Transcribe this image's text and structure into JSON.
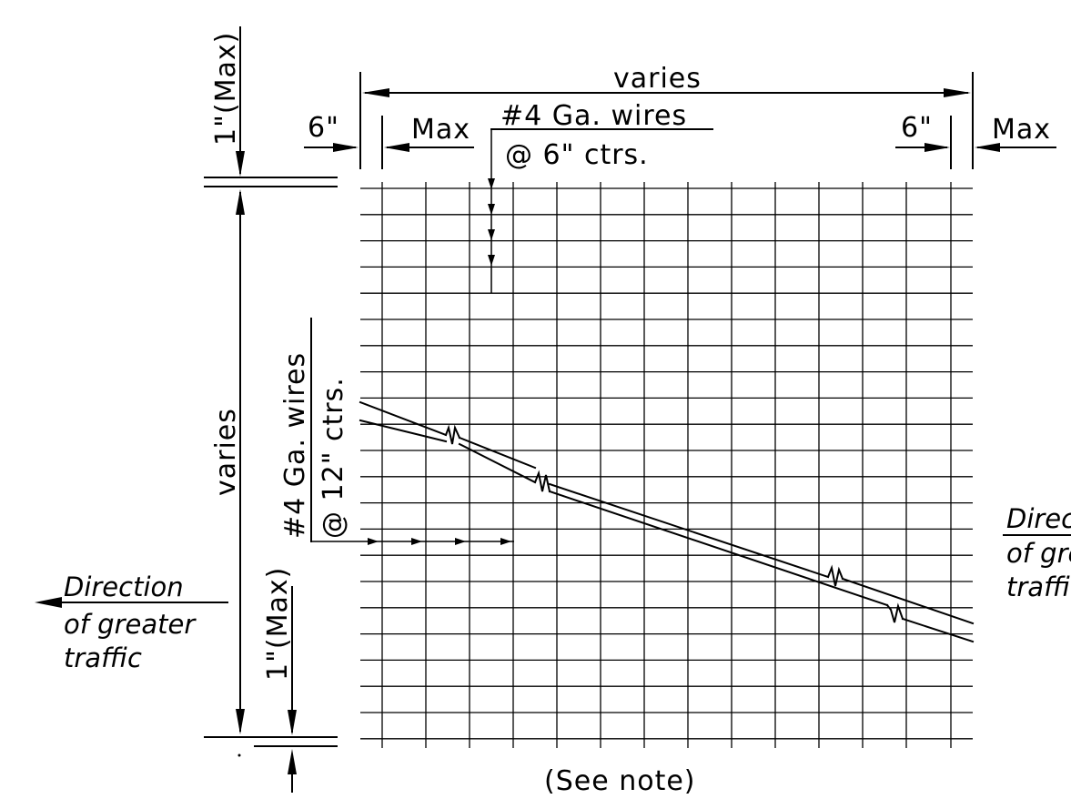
{
  "labels": {
    "top_varies": "varies",
    "left_varies": "varies",
    "top_left_6in": "6\"",
    "top_left_max": "Max",
    "top_right_6in": "6\"",
    "top_right_max": "Max",
    "top_max_1in": "1\"(Max)",
    "bottom_max_1in": "1\"(Max)",
    "long_wire_line1": "#4 Ga. wires",
    "long_wire_line2": "@ 6\" ctrs.",
    "trans_wire_line1": "#4 Ga. wires",
    "trans_wire_line2": "@ 12\" ctrs.",
    "see_note": "(See note)"
  },
  "traffic_left": {
    "line1": "Direction",
    "line2": "of greater",
    "line3": "traffic"
  },
  "traffic_right": {
    "line1": "Direction",
    "line2": "of greater",
    "line3": "traffic"
  }
}
